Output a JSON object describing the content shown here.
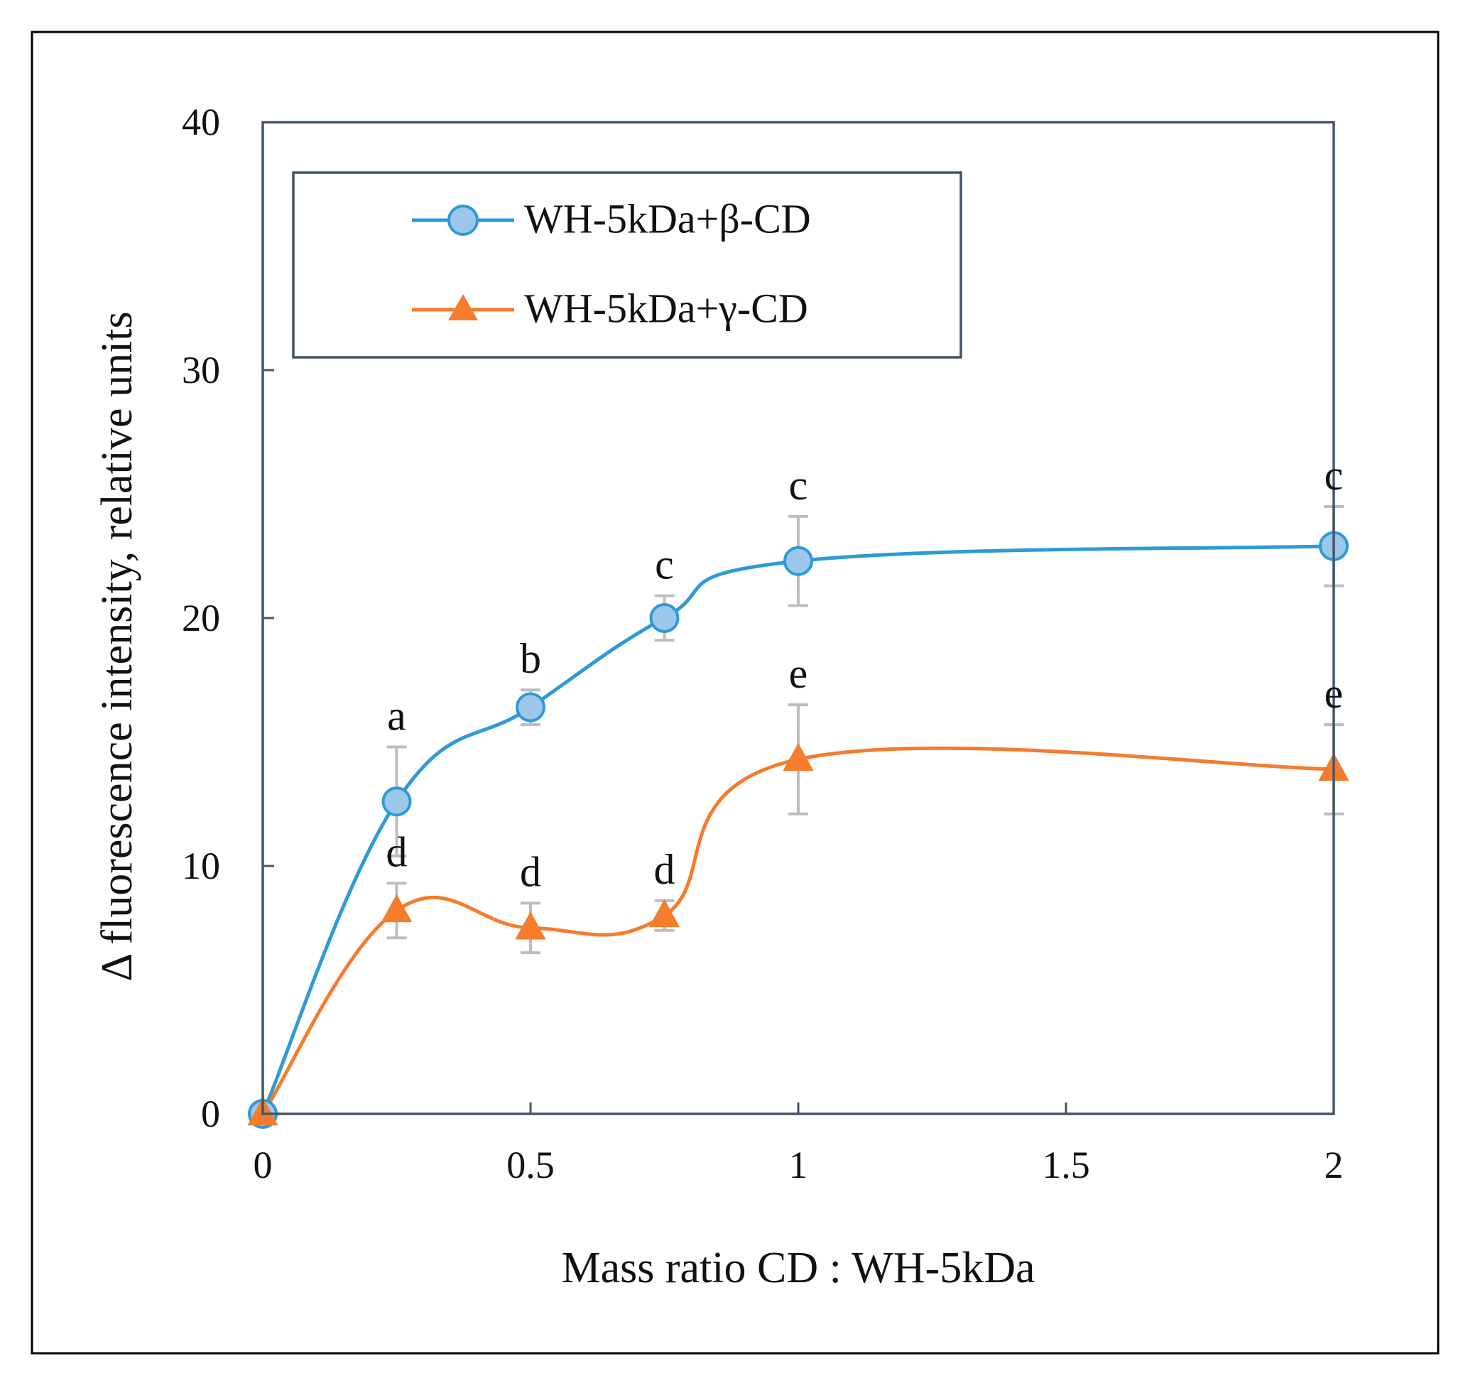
{
  "chart_data": {
    "type": "line",
    "title": "",
    "xlabel": "Mass ratio CD : WH-5kDa",
    "ylabel": "Δ fluorescence intensity, relative units",
    "xlim": [
      0,
      2
    ],
    "ylim": [
      0,
      40
    ],
    "x_ticks": [
      "0",
      "0.5",
      "1",
      "1.5",
      "2"
    ],
    "y_ticks": [
      "0",
      "10",
      "20",
      "30",
      "40"
    ],
    "grid": false,
    "legend_position": "top-left",
    "smoothed": true,
    "series": [
      {
        "name": "WH-5kDa+β-CD",
        "marker": "circle",
        "color": "#2E9AD6",
        "marker_fill": "#9DC7EA",
        "x": [
          0,
          0.25,
          0.5,
          0.75,
          1,
          2
        ],
        "y": [
          0,
          12.6,
          16.4,
          20.0,
          22.3,
          22.9
        ],
        "error": [
          0,
          2.2,
          0.7,
          0.9,
          1.8,
          1.6
        ],
        "labels": [
          "",
          "a",
          "b",
          "c",
          "c",
          "c"
        ]
      },
      {
        "name": "WH-5kDa+γ-CD",
        "marker": "triangle",
        "color": "#F47C2C",
        "marker_fill": "#F47C2C",
        "x": [
          0,
          0.25,
          0.5,
          0.75,
          1,
          2
        ],
        "y": [
          0,
          8.2,
          7.5,
          8.0,
          14.3,
          13.9
        ],
        "error": [
          0,
          1.1,
          1.0,
          0.6,
          2.2,
          1.8
        ],
        "labels": [
          "",
          "d",
          "d",
          "d",
          "e",
          "e"
        ]
      }
    ],
    "error_bar_color": "#BDBDBD",
    "axis_color": "#44546A"
  }
}
